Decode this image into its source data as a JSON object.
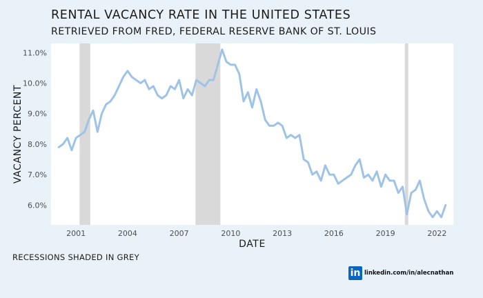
{
  "title": "RENTAL VACANCY RATE IN THE UNITED STATES",
  "subtitle": "RETRIEVED FROM FRED, FEDERAL RESERVE BANK OF ST. LOUIS",
  "caption": "RECESSIONS SHADED IN GREY",
  "credit": {
    "icon": "in",
    "text": "linkedin.com/in/alecnathan"
  },
  "colors": {
    "background": "#e9f2f9",
    "panel": "#ffffff",
    "line": "#9fc3e6",
    "recession": "#d9d9d9"
  },
  "chart_data": {
    "type": "line",
    "title": "RENTAL VACANCY RATE IN THE UNITED STATES",
    "subtitle": "RETRIEVED FROM FRED, FEDERAL RESERVE BANK OF ST. LOUIS",
    "xlabel": "DATE",
    "ylabel": "VACANCY PERCENT",
    "xlim": [
      1999.55,
      2022.95
    ],
    "ylim": [
      5.35,
      11.3
    ],
    "x_ticks": [
      2001,
      2004,
      2007,
      2010,
      2013,
      2016,
      2019,
      2022
    ],
    "x_tick_labels": [
      "2001",
      "2004",
      "2007",
      "2010",
      "2013",
      "2016",
      "2019",
      "2022"
    ],
    "y_ticks": [
      6,
      7,
      8,
      9,
      10,
      11
    ],
    "y_tick_labels": [
      "6.0%",
      "7.0%",
      "8.0%",
      "9.0%",
      "10.0%",
      "11.0%"
    ],
    "grid": false,
    "recessions": [
      [
        2001.21,
        2001.83
      ],
      [
        2007.95,
        2009.4
      ],
      [
        2020.13,
        2020.33
      ]
    ],
    "series": [
      {
        "x": [
          2000.0,
          2000.25,
          2000.5,
          2000.75,
          2001.0,
          2001.25,
          2001.5,
          2001.75,
          2002.0,
          2002.25,
          2002.5,
          2002.75,
          2003.0,
          2003.25,
          2003.5,
          2003.75,
          2004.0,
          2004.25,
          2004.5,
          2004.75,
          2005.0,
          2005.25,
          2005.5,
          2005.75,
          2006.0,
          2006.25,
          2006.5,
          2006.75,
          2007.0,
          2007.25,
          2007.5,
          2007.75,
          2008.0,
          2008.25,
          2008.5,
          2008.75,
          2009.0,
          2009.25,
          2009.5,
          2009.75,
          2010.0,
          2010.25,
          2010.5,
          2010.75,
          2011.0,
          2011.25,
          2011.5,
          2011.75,
          2012.0,
          2012.25,
          2012.5,
          2012.75,
          2013.0,
          2013.25,
          2013.5,
          2013.75,
          2014.0,
          2014.25,
          2014.5,
          2014.75,
          2015.0,
          2015.25,
          2015.5,
          2015.75,
          2016.0,
          2016.25,
          2016.5,
          2016.75,
          2017.0,
          2017.25,
          2017.5,
          2017.75,
          2018.0,
          2018.25,
          2018.5,
          2018.75,
          2019.0,
          2019.25,
          2019.5,
          2019.75,
          2020.0,
          2020.25,
          2020.5,
          2020.75,
          2021.0,
          2021.25,
          2021.5,
          2021.75,
          2022.0,
          2022.25,
          2022.5
        ],
        "values": [
          7.9,
          8.0,
          8.2,
          7.8,
          8.2,
          8.3,
          8.4,
          8.8,
          9.1,
          8.4,
          9.0,
          9.3,
          9.4,
          9.6,
          9.9,
          10.2,
          10.4,
          10.2,
          10.1,
          10.0,
          10.1,
          9.8,
          9.9,
          9.6,
          9.5,
          9.6,
          9.9,
          9.8,
          10.1,
          9.5,
          9.8,
          9.6,
          10.1,
          10.0,
          9.9,
          10.1,
          10.1,
          10.6,
          11.1,
          10.7,
          10.6,
          10.6,
          10.3,
          9.4,
          9.7,
          9.2,
          9.8,
          9.4,
          8.8,
          8.6,
          8.6,
          8.7,
          8.6,
          8.2,
          8.3,
          8.2,
          8.3,
          7.5,
          7.4,
          7.0,
          7.1,
          6.8,
          7.3,
          7.0,
          7.0,
          6.7,
          6.8,
          6.9,
          7.0,
          7.3,
          7.5,
          6.9,
          7.0,
          6.8,
          7.1,
          6.6,
          7.0,
          6.8,
          6.8,
          6.4,
          6.6,
          5.7,
          6.4,
          6.5,
          6.8,
          6.2,
          5.8,
          5.6,
          5.8,
          5.6,
          6.0
        ]
      }
    ]
  }
}
